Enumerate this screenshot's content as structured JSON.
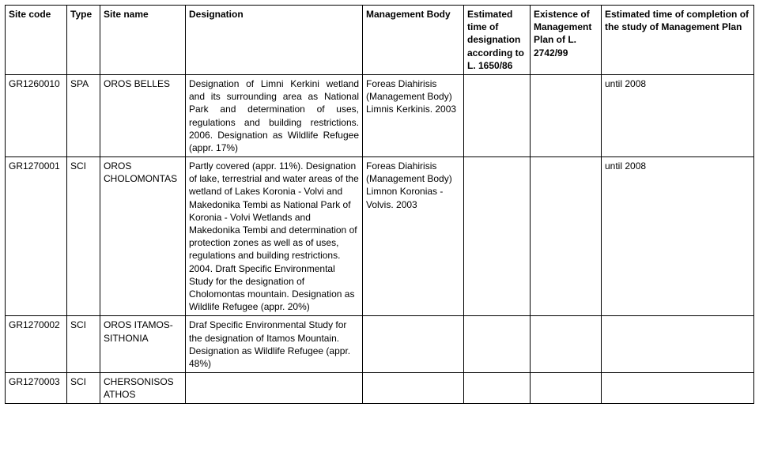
{
  "columns": [
    "Site code",
    "Type",
    "Site name",
    "Designation",
    "Management Body",
    "Estimated time of designation according to L. 1650/86",
    "Existence of Management Plan of L. 2742/99",
    "Estimated time of completion of the study of Management Plan"
  ],
  "rows": [
    {
      "site_code": "GR1260010",
      "type": "SPA",
      "site_name": "OROS BELLES",
      "designation": "Designation of Limni Kerkini wetland and its surrounding area as National Park and determination of uses, regulations and building restrictions. 2006. Designation as Wildlife Refugee (appr. 17%)",
      "mgmt_body": "Foreas Diahirisis (Management Body) Limnis Kerkinis. 2003",
      "est_time_designation": "",
      "existence_plan": "",
      "est_time_completion": "until 2008"
    },
    {
      "site_code": "GR1270001",
      "type": "SCI",
      "site_name": "OROS CHOLOMONTAS",
      "designation": "Partly covered (appr. 11%). Designation of lake, terrestrial and water areas of the wetland of Lakes Koronia - Volvi and Makedonika Tembi as National Park of Koronia - Volvi Wetlands and Makedonika Tembi and determination of protection zones as well as of uses, regulations and building restrictions. 2004. Draft Specific Environmental Study for the designation of Cholomontas mountain. Designation as Wildlife Refugee (appr. 20%)",
      "mgmt_body": "Foreas Diahirisis (Management Body) Limnon Koronias - Volvis. 2003",
      "est_time_designation": "",
      "existence_plan": "",
      "est_time_completion": "until 2008"
    },
    {
      "site_code": "GR1270002",
      "type": "SCI",
      "site_name": "OROS ITAMOS-SITHONIA",
      "designation": "Draf Specific Environmental Study for the designation of Itamos Mountain. Designation as Wildlife Refugee (appr. 48%)",
      "mgmt_body": "",
      "est_time_designation": "",
      "existence_plan": "",
      "est_time_completion": ""
    },
    {
      "site_code": "GR1270003",
      "type": "SCI",
      "site_name": "CHERSONISOS ATHOS",
      "designation": "",
      "mgmt_body": "",
      "est_time_designation": "",
      "existence_plan": "",
      "est_time_completion": ""
    }
  ]
}
